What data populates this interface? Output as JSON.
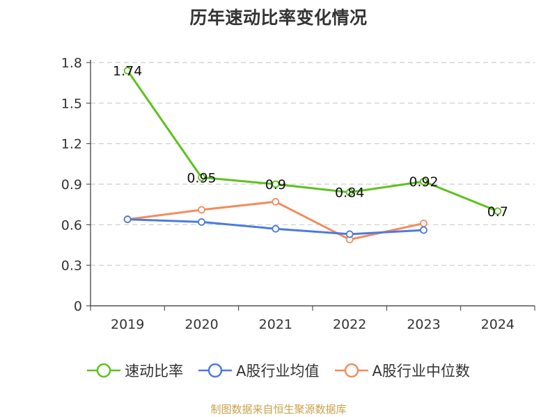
{
  "source_note": "制图数据来自恒生聚源数据库",
  "chart_data": {
    "type": "line",
    "title": "历年速动比率变化情况",
    "xlabel": "",
    "ylabel": "",
    "categories": [
      "2019",
      "2020",
      "2021",
      "2022",
      "2023",
      "2024"
    ],
    "ylim": [
      0,
      1.8
    ],
    "yticks": [
      "0",
      "0.3",
      "0.6",
      "0.9",
      "1.2",
      "1.5",
      "1.8"
    ],
    "grid": true,
    "legend_position": "bottom",
    "series": [
      {
        "name": "速动比率",
        "color": "#5cc21e",
        "values": [
          1.74,
          0.95,
          0.9,
          0.84,
          0.92,
          0.7
        ],
        "labels": [
          "1.74",
          "0.95",
          "0.9",
          "0.84",
          "0.92",
          "0.7"
        ]
      },
      {
        "name": "A股行业均值",
        "color": "#4b7bdc",
        "values": [
          0.64,
          0.62,
          0.57,
          0.53,
          0.56,
          null
        ]
      },
      {
        "name": "A股行业中位数",
        "color": "#f28c5b",
        "values": [
          0.64,
          0.71,
          0.77,
          0.49,
          0.61,
          null
        ]
      }
    ]
  }
}
